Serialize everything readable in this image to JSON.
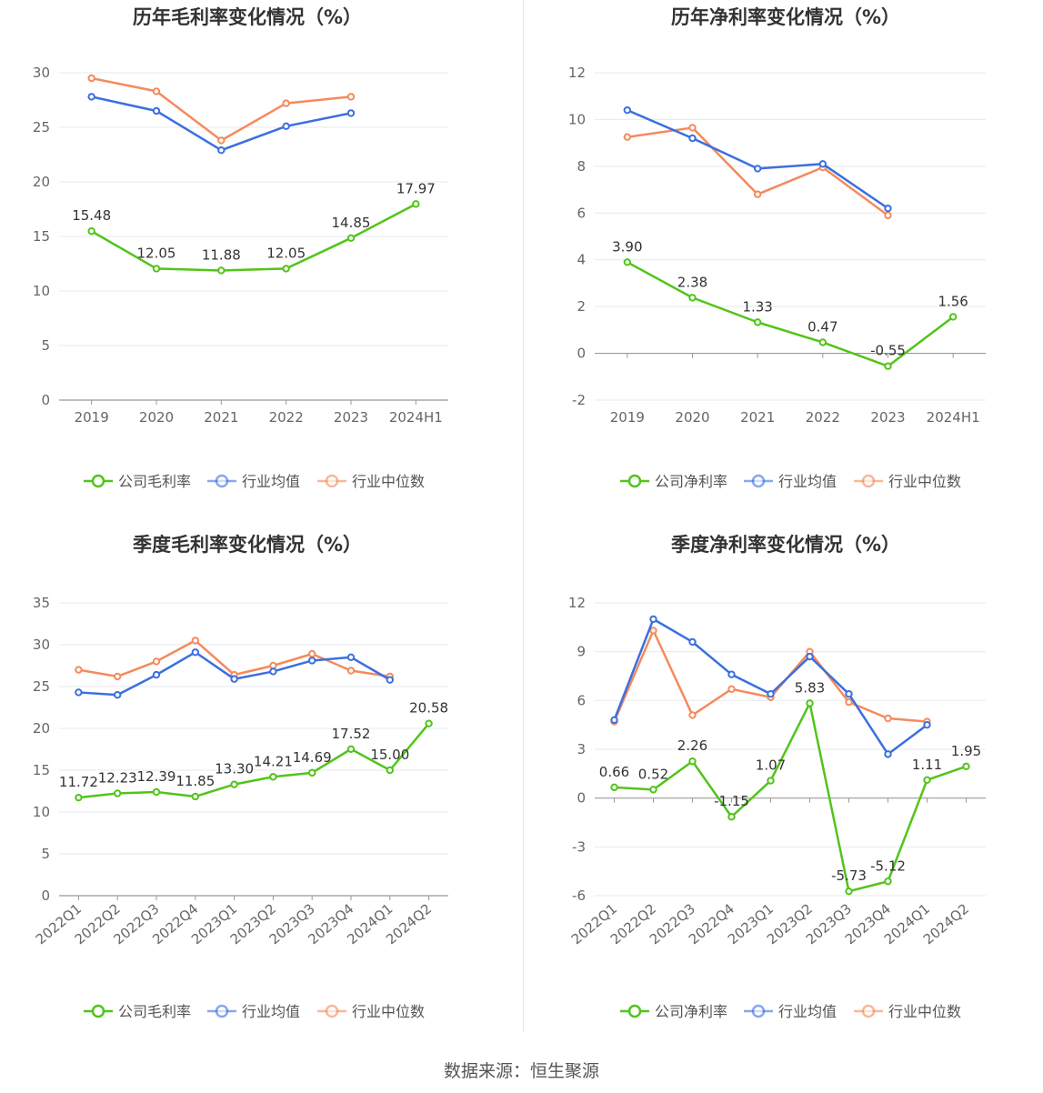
{
  "source_text": "数据来源：恒生聚源",
  "colors": {
    "company": "#52c41a",
    "avg": "#3b6fe0",
    "median": "#f58a5c"
  },
  "chart_data": [
    {
      "type": "line",
      "title": "历年毛利率变化情况（%）",
      "categories": [
        "2019",
        "2020",
        "2021",
        "2022",
        "2023",
        "2024H1"
      ],
      "y_ticks": [
        "0",
        "5",
        "10",
        "15",
        "20",
        "25",
        "30"
      ],
      "ylim": [
        0,
        30
      ],
      "legend_position": "bottom",
      "series": [
        {
          "name": "公司毛利率",
          "color": "#52c41a",
          "values": [
            15.48,
            12.05,
            11.88,
            12.05,
            14.85,
            17.97
          ],
          "labels": [
            "15.48",
            "12.05",
            "11.88",
            "12.05",
            "14.85",
            "17.97"
          ]
        },
        {
          "name": "行业均值",
          "color": "#3b6fe0",
          "values": [
            27.8,
            26.5,
            22.9,
            25.1,
            26.3,
            null
          ]
        },
        {
          "name": "行业中位数",
          "color": "#f58a5c",
          "values": [
            29.5,
            28.3,
            23.8,
            27.2,
            27.8,
            null
          ]
        }
      ]
    },
    {
      "type": "line",
      "title": "历年净利率变化情况（%）",
      "categories": [
        "2019",
        "2020",
        "2021",
        "2022",
        "2023",
        "2024H1"
      ],
      "y_ticks": [
        "-2",
        "0",
        "2",
        "4",
        "6",
        "8",
        "10",
        "12"
      ],
      "ylim": [
        -2,
        12
      ],
      "legend_position": "bottom",
      "series": [
        {
          "name": "公司净利率",
          "color": "#52c41a",
          "values": [
            3.9,
            2.38,
            1.33,
            0.47,
            -0.55,
            1.56
          ],
          "labels": [
            "3.90",
            "2.38",
            "1.33",
            "0.47",
            "-0.55",
            "1.56"
          ]
        },
        {
          "name": "行业均值",
          "color": "#3b6fe0",
          "values": [
            10.4,
            9.2,
            7.9,
            8.1,
            6.2,
            null
          ]
        },
        {
          "name": "行业中位数",
          "color": "#f58a5c",
          "values": [
            9.25,
            9.65,
            6.8,
            7.95,
            5.9,
            null
          ]
        }
      ]
    },
    {
      "type": "line",
      "title": "季度毛利率变化情况（%）",
      "categories": [
        "2022Q1",
        "2022Q2",
        "2022Q3",
        "2022Q4",
        "2023Q1",
        "2023Q2",
        "2023Q3",
        "2023Q4",
        "2024Q1",
        "2024Q2"
      ],
      "y_ticks": [
        "0",
        "5",
        "10",
        "15",
        "20",
        "25",
        "30",
        "35"
      ],
      "ylim": [
        0,
        35
      ],
      "legend_position": "bottom",
      "series": [
        {
          "name": "公司毛利率",
          "color": "#52c41a",
          "values": [
            11.72,
            12.23,
            12.39,
            11.85,
            13.3,
            14.21,
            14.69,
            17.52,
            15.0,
            20.58
          ],
          "labels": [
            "11.72",
            "12.23",
            "12.39",
            "11.85",
            "13.30",
            "14.21",
            "14.69",
            "17.52",
            "15.00",
            "20.58"
          ]
        },
        {
          "name": "行业均值",
          "color": "#3b6fe0",
          "values": [
            24.3,
            24.0,
            26.4,
            29.1,
            25.9,
            26.8,
            28.1,
            28.5,
            25.8,
            null
          ]
        },
        {
          "name": "行业中位数",
          "color": "#f58a5c",
          "values": [
            27.0,
            26.2,
            28.0,
            30.5,
            26.4,
            27.5,
            28.9,
            26.9,
            26.2,
            null
          ]
        }
      ]
    },
    {
      "type": "line",
      "title": "季度净利率变化情况（%）",
      "categories": [
        "2022Q1",
        "2022Q2",
        "2022Q3",
        "2022Q4",
        "2023Q1",
        "2023Q2",
        "2023Q3",
        "2023Q4",
        "2024Q1",
        "2024Q2"
      ],
      "y_ticks": [
        "-6",
        "-3",
        "0",
        "3",
        "6",
        "9",
        "12"
      ],
      "ylim": [
        -6,
        12
      ],
      "legend_position": "bottom",
      "series": [
        {
          "name": "公司净利率",
          "color": "#52c41a",
          "values": [
            0.66,
            0.52,
            2.26,
            -1.15,
            1.07,
            5.83,
            -5.73,
            -5.12,
            1.11,
            1.95
          ],
          "labels": [
            "0.66",
            "0.52",
            "2.26",
            "-1.15",
            "1.07",
            "5.83",
            "-5.73",
            "-5.12",
            "1.11",
            "1.95"
          ]
        },
        {
          "name": "行业均值",
          "color": "#3b6fe0",
          "values": [
            4.8,
            11.0,
            9.6,
            7.6,
            6.4,
            8.7,
            6.4,
            2.7,
            4.5,
            null
          ]
        },
        {
          "name": "行业中位数",
          "color": "#f58a5c",
          "values": [
            4.7,
            10.3,
            5.1,
            6.7,
            6.2,
            9.0,
            5.9,
            4.9,
            4.7,
            null
          ]
        }
      ]
    }
  ]
}
